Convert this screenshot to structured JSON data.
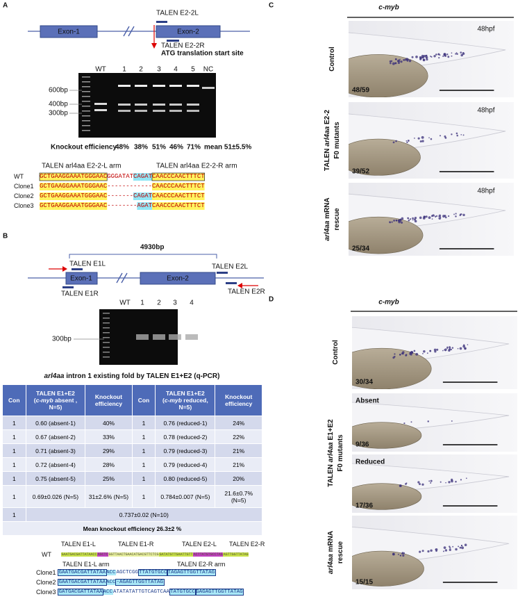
{
  "panel_a": {
    "label": "A",
    "exon1": "Exon-1",
    "exon2": "Exon-2",
    "talen_l": "TALEN E2-2L",
    "talen_r": "TALEN E2-2R",
    "atg": "ATG translation start site",
    "lanes": [
      "WT",
      "1",
      "2",
      "3",
      "4",
      "5",
      "NC"
    ],
    "markers": [
      "600bp",
      "400bp",
      "300bp"
    ],
    "efficiency_label": "Knockout efficiency",
    "efficiencies": [
      "48%",
      "38%",
      "51%",
      "46%",
      "71%"
    ],
    "mean": "mean 51±5.5%",
    "arm_l": "TALEN arl4aa E2-2-L arm",
    "arm_r": "TALEN arl4aa E2-2-R arm",
    "alignment": [
      {
        "name": "WT",
        "seq": "GCTGAAGGAAATGGGAACGGGATATCAGATCAACCCAACTTTCT"
      },
      {
        "name": "Clone1",
        "seq": "GCTGAAGGAAATGGGAAC------------CAACCCAACTTTCT"
      },
      {
        "name": "Clone2",
        "seq": "GCTGAAGGAAATGGGAAC-------CAGATCAACCCAACTTTCT"
      },
      {
        "name": "Clone3",
        "seq": "GCTGAAGGAAATGGGAAC--------AGATCAACCCAACTTTCT"
      }
    ]
  },
  "panel_b": {
    "label": "B",
    "size": "4930bp",
    "exon1": "Exon-1",
    "exon2": "Exon-2",
    "e1l": "TALEN  E1L",
    "e1r": "TALEN  E1R",
    "e2l": "TALEN E2L",
    "e2r": "TALEN E2R",
    "lanes": [
      "WT",
      "1",
      "2",
      "3",
      "4"
    ],
    "marker": "300bp"
  },
  "table": {
    "title_gene": "arl4aa",
    "title_rest": " intron 1 existing fold by TALEN E1+E2  (q-PCR)",
    "headers": [
      "Con",
      {
        "a": "TALEN E1+E2",
        "b": "(",
        "i": "c-myb",
        "c": " absent , N=5)"
      },
      "Knockout efficiency",
      "Con",
      {
        "a": "TALEN E1+E2",
        "b": "(",
        "i": "c-myb",
        "c": " reduced, N=5)"
      },
      "Knockout efficiency"
    ],
    "rows": [
      [
        "1",
        "0.60   (absent-1)",
        "40%",
        "1",
        "0.76 (reduced-1)",
        "24%"
      ],
      [
        "1",
        "0.67   (absent-2)",
        "33%",
        "1",
        "0.78 (reduced-2)",
        "22%"
      ],
      [
        "1",
        "0.71   (absent-3)",
        "29%",
        "1",
        "0.79 (reduced-3)",
        "21%"
      ],
      [
        "1",
        "0.72   (absent-4)",
        "28%",
        "1",
        "0.79 (reduced-4)",
        "21%"
      ],
      [
        "1",
        "0.75   (absent-5)",
        "25%",
        "1",
        "0.80 (reduced-5)",
        "20%"
      ],
      [
        "1",
        "0.69±0.026 (N=5)",
        "31±2.6% (N=5)",
        "1",
        "0.784±0.007 (N=5)",
        "21.6±0.7% (N=5)"
      ],
      [
        "1",
        "0.737±0.02  (N=10)"
      ],
      [
        "Mean knockout efficiency  26.3±2 %"
      ]
    ]
  },
  "seq_b": {
    "labels": [
      "TALEN E1-L",
      "TALEN E1-R",
      "TALEN E2-L",
      "TALEN E2-R"
    ],
    "wt_name": "WT",
    "wt": [
      "GAATGACGATTATAACC",
      "AGCTC",
      "GGTTAACTGAACATGACGTTCTCG",
      "GATATGTTGAATTGTT",
      "ACTTATGTGCCTAG",
      "AGTTGGTTATAG"
    ],
    "arm_l": "TALEN E1-L arm",
    "arm_r": "TALEN E2-R arm",
    "clones": [
      {
        "name": "Clone1",
        "segs": [
          "GAATGACGATTATAA",
          "ACC",
          "AGCTCGG",
          "TTATGTGCC",
          "TAGAGTTGGTTATAG"
        ]
      },
      {
        "name": "Clone2",
        "segs": [
          "GAATGACGATTATAA",
          "ACC",
          "-AGAGTTGGTTATAG"
        ]
      },
      {
        "name": "Clone3",
        "segs": [
          "GATGACGATTATAA",
          "ACC",
          "ATATATATTGTCAGTCAA",
          "TATGTGCC",
          "GAGAGTTGGTTATAG"
        ]
      }
    ]
  },
  "panel_c": {
    "label": "C",
    "gene": "c-myb",
    "time": "48hpf",
    "counts": [
      "48/59",
      "39/52",
      "25/34"
    ],
    "side": [
      {
        "pre": "Control"
      },
      {
        "pre": "TALEN ",
        "gene": "arl4aa",
        "post": " E2-2",
        "line2": "F0 mutants"
      },
      {
        "gene": "arl4aa",
        "post": " mRNA",
        "line2": "rescue"
      }
    ]
  },
  "panel_d": {
    "label": "D",
    "gene": "c-myb",
    "counts": [
      "30/34",
      "9/36",
      "17/36",
      "15/15"
    ],
    "subs": [
      "Absent",
      "Reduced"
    ],
    "side": [
      {
        "pre": "Control"
      },
      {
        "pre": "TALEN ",
        "gene": "arl4aa",
        "post": " E1+E2",
        "line2": "F0 mutants"
      },
      {
        "gene": "arl4aa",
        "post": " mRNA",
        "line2": "rescue"
      }
    ]
  }
}
